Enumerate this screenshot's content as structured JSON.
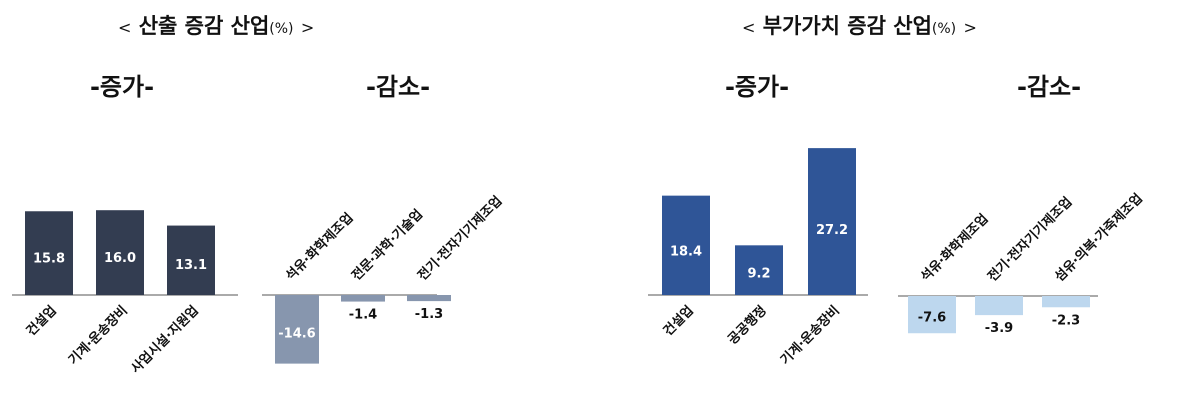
{
  "left_panel": {
    "title_open": "<",
    "title": "산출 증감 산업",
    "unit": "(%)",
    "title_close": ">"
  },
  "right_panel": {
    "title_open": "<",
    "title": "부가가치 증감 산업",
    "unit": "(%)",
    "title_close": ">"
  },
  "colors": {
    "output_increase": "#333d51",
    "output_decrease": "#8796ae",
    "value_increase": "#2f5597",
    "value_decrease": "#bdd7ee"
  },
  "chart_data": [
    {
      "type": "bar",
      "panel": "산출 증감 산업",
      "subtitle": "-증가-",
      "categories": [
        "건설업",
        "기계·운송장비",
        "사업시설·지원업"
      ],
      "values": [
        15.8,
        16.0,
        13.1
      ],
      "label_position": "inside"
    },
    {
      "type": "bar",
      "panel": "산출 증감 산업",
      "subtitle": "-감소-",
      "categories": [
        "석유·화학제조업",
        "전문·과학·기술업",
        "전기·전자기기제조업"
      ],
      "values": [
        -14.6,
        -1.4,
        -1.3
      ],
      "label_position": "mixed"
    },
    {
      "type": "bar",
      "panel": "부가가치 증감 산업",
      "subtitle": "-증가-",
      "categories": [
        "건설업",
        "공공행정",
        "기계·운송장비"
      ],
      "values": [
        18.4,
        9.2,
        27.2
      ],
      "label_position": "inside"
    },
    {
      "type": "bar",
      "panel": "부가가치 증감 산업",
      "subtitle": "-감소-",
      "categories": [
        "석유·화학제조업",
        "전기·전자기기제조업",
        "섬유·의복·가죽제조업"
      ],
      "values": [
        -7.6,
        -3.9,
        -2.3
      ],
      "label_position": "mixed"
    }
  ]
}
